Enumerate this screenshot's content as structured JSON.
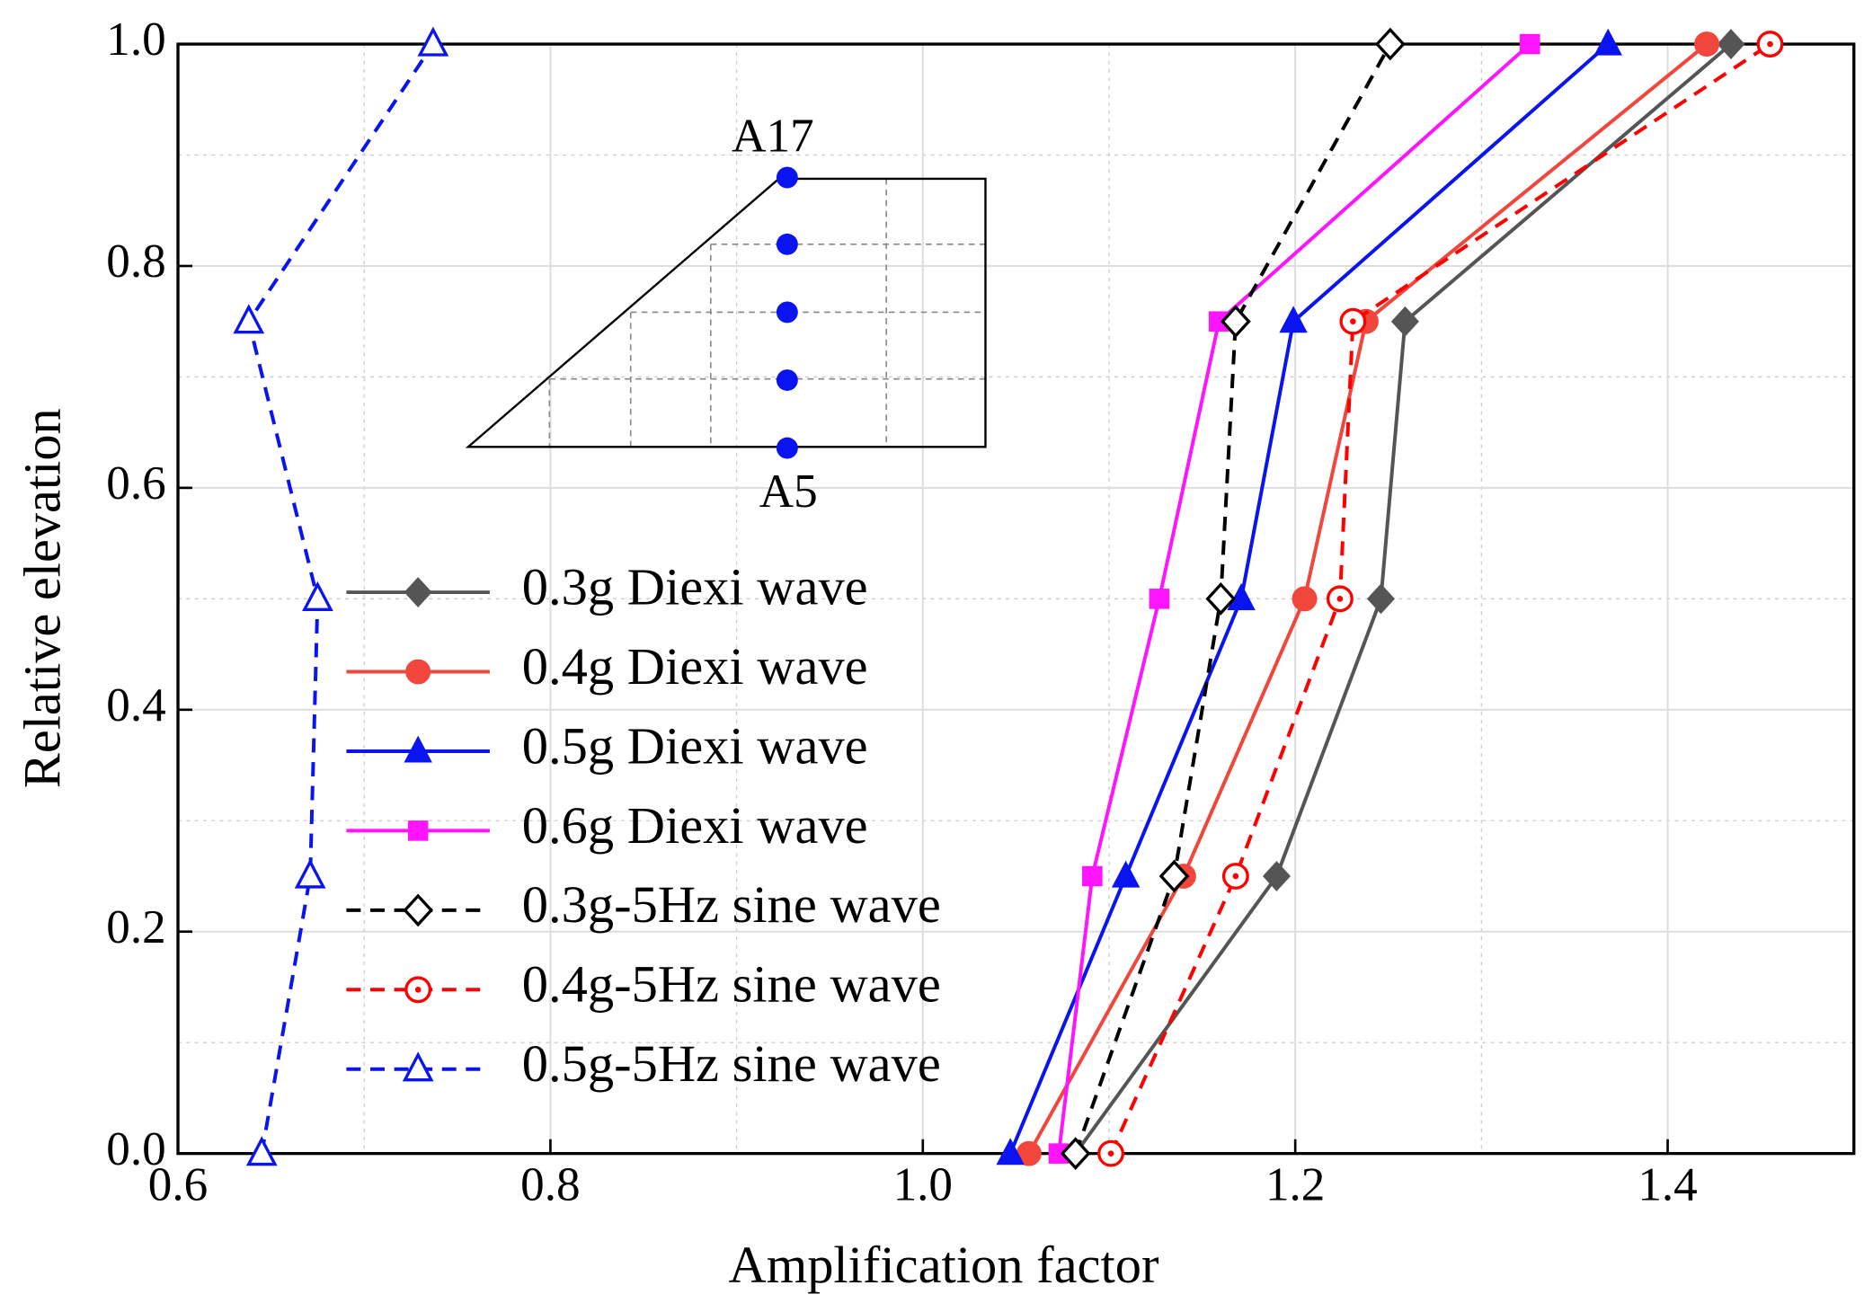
{
  "chart_data": {
    "type": "line",
    "xlabel": "Amplification factor",
    "ylabel": "Relative elevation",
    "xlim": [
      0.6,
      1.5
    ],
    "xticks": [
      0.6,
      0.8,
      {
        "value": 1,
        "label": "1.0"
      },
      1.2,
      1.4
    ],
    "ylim": [
      0,
      1
    ],
    "yticks": [
      {
        "value": 0,
        "label": "0.0"
      },
      0.2,
      0.4,
      0.6,
      0.8,
      {
        "value": 1,
        "label": "1.0"
      }
    ],
    "grid": true,
    "y": [
      0,
      0.25,
      0.5,
      0.75,
      1
    ],
    "series": [
      {
        "name": "0.3g Diexi wave",
        "color": "#555555",
        "marker": "diamond",
        "filled": true,
        "dashed": false,
        "x": [
          1.082,
          1.19,
          1.246,
          1.259,
          1.434
        ]
      },
      {
        "name": "0.4g Diexi wave",
        "color": "#f0463c",
        "marker": "circle",
        "filled": true,
        "dashed": false,
        "x": [
          1.057,
          1.14,
          1.205,
          1.238,
          1.421
        ]
      },
      {
        "name": "0.5g Diexi wave",
        "color": "#0a14f0",
        "marker": "triangle",
        "filled": true,
        "dashed": false,
        "x": [
          1.047,
          1.109,
          1.171,
          1.199,
          1.368
        ]
      },
      {
        "name": "0.6g Diexi wave",
        "color": "#ff14ff",
        "marker": "square",
        "filled": true,
        "dashed": false,
        "x": [
          1.073,
          1.091,
          1.127,
          1.159,
          1.326
        ]
      },
      {
        "name": "0.3g-5Hz sine wave",
        "color": "#000000",
        "marker": "diamond",
        "filled": false,
        "dashed": true,
        "x": [
          1.082,
          1.135,
          1.16,
          1.168,
          1.251
        ]
      },
      {
        "name": "0.4g-5Hz sine wave",
        "color": "#ff0000",
        "marker": "circle",
        "filled": false,
        "dashed": true,
        "x": [
          1.101,
          1.168,
          1.224,
          1.231,
          1.455
        ]
      },
      {
        "name": "0.5g-5Hz sine wave",
        "color": "#0a14f0",
        "marker": "triangle",
        "filled": false,
        "dashed": true,
        "x": [
          0.645,
          0.671,
          0.675,
          0.638,
          0.737
        ]
      }
    ]
  },
  "inset": {
    "top_label": "A17",
    "bottom_label": "A5"
  }
}
